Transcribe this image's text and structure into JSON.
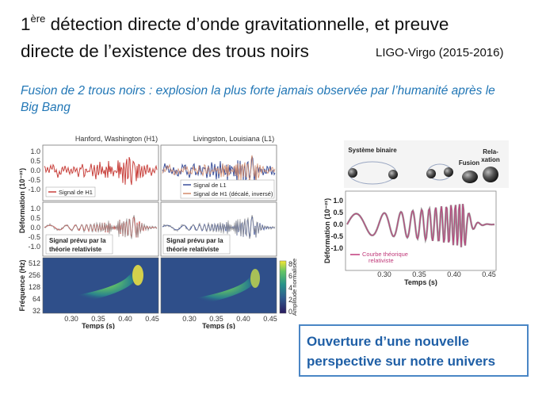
{
  "slide": {
    "title_line1_prefix": "1",
    "title_line1_sup": "ère",
    "title_line1_rest": " détection directe d’onde gravitationnelle, et preuve",
    "title_line2": "directe de l’existence des trous noirs",
    "credit": "LIGO-Virgo (2015-2016)",
    "subtitle": "Fusion de 2 trous noirs : explosion la plus forte jamais observée par l’humanité après le Big Bang",
    "callout_line1": "Ouverture d’une nouvelle",
    "callout_line2": "perspective sur notre univers"
  },
  "left_figure": {
    "panel_h1_title": "Hanford, Washington (H1)",
    "panel_l1_title": "Livingston, Louisiana (L1)",
    "ylabel_strain": "Déformation (10⁻²¹)",
    "ylabel_freq": "Fréquence (Hz)",
    "colorbar_label": "Amplitude normalisée",
    "xlabel": "Temps (s)",
    "legend_h1": "Signal de H1",
    "legend_l1": "Signal de L1",
    "legend_h1_shifted": "Signal de H1 (décalé, inversé)",
    "predicted_line1": "Signal prévu par la",
    "predicted_line2": "théorie relativiste",
    "strain_ticks": [
      "1.0",
      "0.5",
      "0.0",
      "-0.5",
      "-1.0"
    ],
    "freq_ticks": [
      "512",
      "256",
      "128",
      "64",
      "32"
    ],
    "colorbar_ticks": [
      "8",
      "6",
      "4",
      "2",
      "0"
    ],
    "time_ticks_h1": [
      "0.30",
      "0.35",
      "0.40",
      "0.45"
    ],
    "time_ticks_l1": [
      "0.30",
      "0.35",
      "0.40",
      "0.45"
    ]
  },
  "right_figure": {
    "label_binary": "Système binaire",
    "label_fusion": "Fusion",
    "label_relax1": "Rela-",
    "label_relax2": "xation",
    "ylabel": "Déformation (10⁻²¹)",
    "xlabel": "Temps (s)",
    "legend1": "Courbe théorique",
    "legend2": "relativiste",
    "y_ticks": [
      "1.0",
      "0.5",
      "0.0",
      "-0.5",
      "-1.0"
    ],
    "x_ticks": [
      "0.30",
      "0.35",
      "0.40",
      "0.45"
    ]
  },
  "colors": {
    "title": "#111111",
    "subtitle": "#2277b6",
    "callout_text": "#1f5fa6",
    "callout_border": "#4a86c5",
    "signal_red": "#c8413c",
    "signal_blue": "#3a4f9a",
    "theory_gray": "#888888",
    "theory_pink": "#c03a7a"
  }
}
